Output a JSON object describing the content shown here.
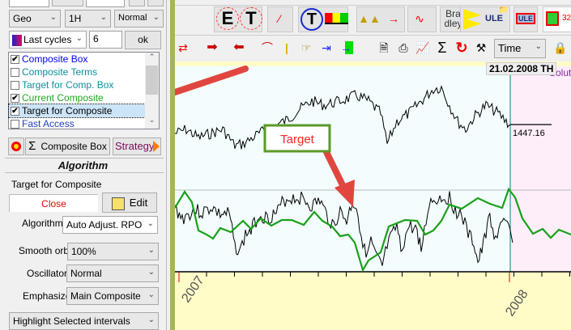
{
  "panel": {
    "selects": {
      "mode": "Geo",
      "timeframe": "1H",
      "style": "Normal",
      "cycles": "Last cycles"
    },
    "cycles_count": "6",
    "ok_label": "ok",
    "list_items": [
      {
        "label": "Composite Box",
        "checked": true,
        "color": "#0000ff"
      },
      {
        "label": "Composite Terms",
        "checked": false,
        "color": "#0b8f9b"
      },
      {
        "label": "Target for Comp. Box",
        "checked": false,
        "color": "#0b8f9b"
      },
      {
        "label": "Current Composite",
        "checked": true,
        "color": "#1fa81f"
      },
      {
        "label": "Target for Composite",
        "checked": true,
        "color": "#000000",
        "selected": true
      },
      {
        "label": "Fast Access",
        "checked": false,
        "color": "#1e40c8"
      }
    ],
    "composite_box_label": "Composite Box",
    "strategy_label": "Strategy",
    "section_title": "Algorithm",
    "target_title": "Target for Composite",
    "close_tab": "Close",
    "edit_label": "Edit",
    "algorithm_label": "Algorithm",
    "algorithm_value": "Auto Adjust. RPO",
    "smooth_label": "Smooth orb",
    "smooth_value": "100%",
    "oscillator_label": "Oscillator",
    "oscillator_value": "Normal",
    "emphasize_label": "Emphasize",
    "emphasize_value": "Main Composite",
    "highlight_value": "Highlight Selected intervals"
  },
  "toolbar": {
    "bradley": "Bra dley",
    "ule": "ULE",
    "ule2": "ULE",
    "time_select": "Time",
    "num_partial": "32"
  },
  "chart": {
    "date_tooltip": "21.02.2008 TH",
    "price_label": "1447.16",
    "partial_text": "Solut",
    "x_ticks": [
      "2007",
      "2008"
    ],
    "annotation": "Target"
  },
  "colors": {
    "composite": "#1aa01a",
    "price": "#000000",
    "arrow": "#e0463f",
    "future_bg": "#fdeefa",
    "plot_bg": "#f3fdfd",
    "axis_bg": "#fffcc8"
  }
}
